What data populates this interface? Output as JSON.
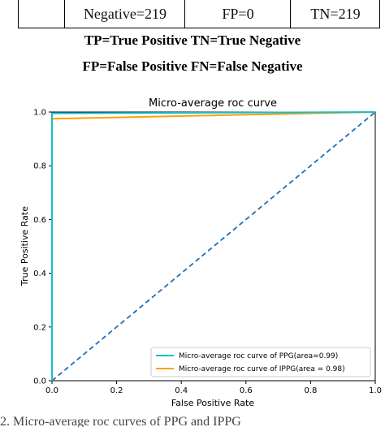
{
  "table": {
    "cells": [
      "",
      "Negative=219",
      "FP=0",
      "TN=219"
    ]
  },
  "abbrev": {
    "line1": "TP=True Positive TN=True Negative",
    "line2": "FP=False Positive FN=False Negative"
  },
  "chart_data": {
    "type": "line",
    "title": "Micro-average roc curve",
    "xlabel": "False Positive Rate",
    "ylabel": "True Positive Rate",
    "xlim": [
      0,
      1
    ],
    "ylim": [
      0,
      1
    ],
    "xticks": [
      "0.0",
      "0.2",
      "0.4",
      "0.6",
      "0.8",
      "1.0"
    ],
    "yticks": [
      "0.0",
      "0.2",
      "0.4",
      "0.6",
      "0.8",
      "1.0"
    ],
    "grid": false,
    "legend_position": "lower-right",
    "series": [
      {
        "name": "Micro-average roc curve of PPG(area=0.99)",
        "color": "#17becf",
        "x": [
          0,
          0,
          1
        ],
        "y": [
          0,
          0.995,
          1.0
        ]
      },
      {
        "name": "Micro-average roc curve of IPPG(area = 0.98)",
        "color": "#ff9f00",
        "x": [
          0,
          0,
          1
        ],
        "y": [
          0,
          0.975,
          1.0
        ]
      },
      {
        "name": "",
        "color": "#1f6fb4",
        "dashed": true,
        "x": [
          0,
          1
        ],
        "y": [
          0,
          1
        ]
      }
    ]
  },
  "caption": "2. Micro-average roc curves of PPG and IPPG"
}
